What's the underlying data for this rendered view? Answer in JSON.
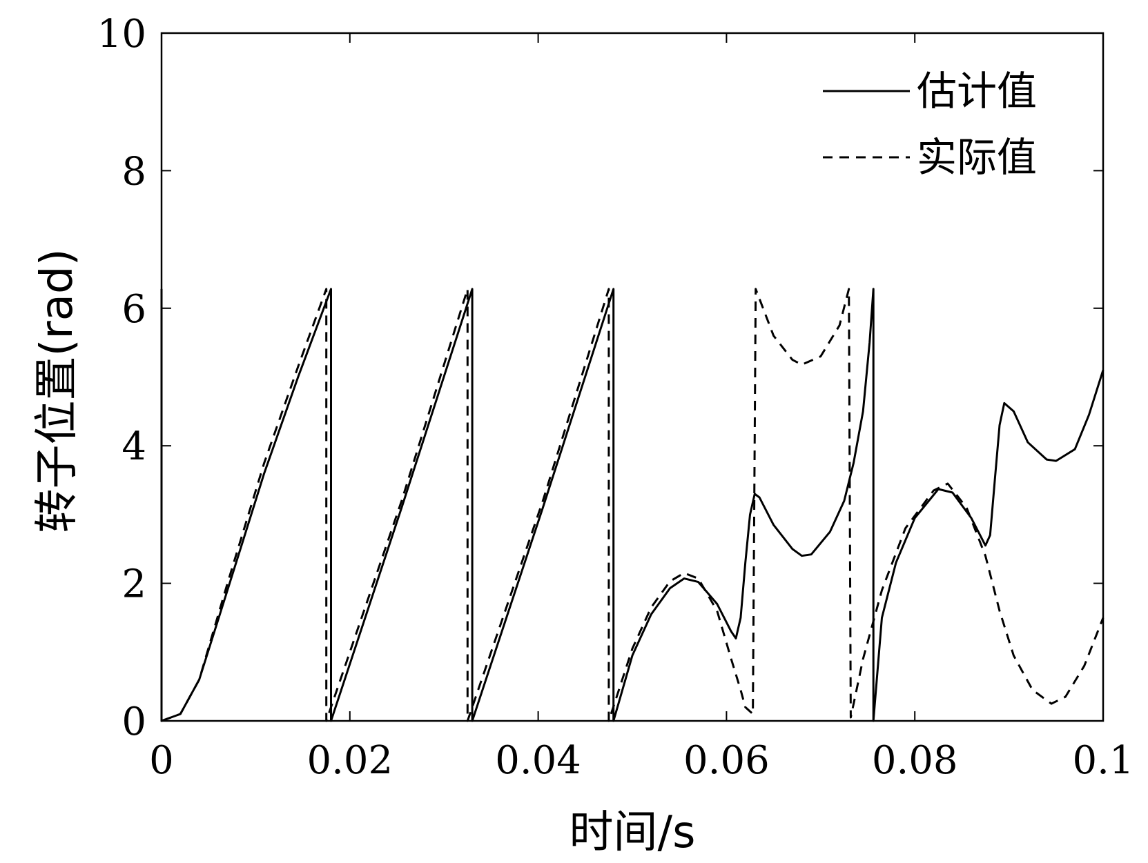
{
  "chart_data": {
    "type": "line",
    "xlabel": "时间/s",
    "ylabel": "转子位置(rad)",
    "xlim": [
      0,
      0.1
    ],
    "ylim": [
      0,
      10
    ],
    "x_ticks": [
      0,
      0.02,
      0.04,
      0.06,
      0.08,
      0.1
    ],
    "x_tick_labels": [
      "0",
      "0.02",
      "0.04",
      "0.06",
      "0.08",
      "0.1"
    ],
    "y_ticks": [
      0,
      2,
      4,
      6,
      8,
      10
    ],
    "y_tick_labels": [
      "0",
      "2",
      "4",
      "6",
      "8",
      "10"
    ],
    "grid": false,
    "legend_position": "top-right",
    "series": [
      {
        "name": "估计值",
        "style": "solid",
        "color": "#000000",
        "points": [
          [
            0,
            6.28
          ],
          [
            0,
            0
          ],
          [
            0.002,
            0.1
          ],
          [
            0.004,
            0.6
          ],
          [
            0.007,
            1.9
          ],
          [
            0.0109,
            3.6
          ],
          [
            0.0145,
            5.0
          ],
          [
            0.018,
            6.28
          ],
          [
            0.018,
            0
          ],
          [
            0.0255,
            3.1
          ],
          [
            0.033,
            6.28
          ],
          [
            0.033,
            0
          ],
          [
            0.0405,
            3.1
          ],
          [
            0.048,
            6.28
          ],
          [
            0.048,
            0
          ],
          [
            0.05,
            0.95
          ],
          [
            0.052,
            1.55
          ],
          [
            0.054,
            1.93
          ],
          [
            0.0555,
            2.07
          ],
          [
            0.057,
            2.02
          ],
          [
            0.059,
            1.7
          ],
          [
            0.0605,
            1.3
          ],
          [
            0.061,
            1.2
          ],
          [
            0.0615,
            1.5
          ],
          [
            0.062,
            2.3
          ],
          [
            0.0625,
            3.0
          ],
          [
            0.063,
            3.3
          ],
          [
            0.0635,
            3.25
          ],
          [
            0.065,
            2.85
          ],
          [
            0.067,
            2.5
          ],
          [
            0.068,
            2.4
          ],
          [
            0.069,
            2.42
          ],
          [
            0.071,
            2.75
          ],
          [
            0.0725,
            3.2
          ],
          [
            0.0735,
            3.75
          ],
          [
            0.0745,
            4.5
          ],
          [
            0.0752,
            5.5
          ],
          [
            0.0756,
            6.28
          ],
          [
            0.0756,
            0
          ],
          [
            0.0765,
            1.5
          ],
          [
            0.078,
            2.3
          ],
          [
            0.08,
            2.95
          ],
          [
            0.0825,
            3.37
          ],
          [
            0.084,
            3.32
          ],
          [
            0.086,
            2.95
          ],
          [
            0.0875,
            2.55
          ],
          [
            0.088,
            2.7
          ],
          [
            0.0885,
            3.5
          ],
          [
            0.089,
            4.3
          ],
          [
            0.0895,
            4.62
          ],
          [
            0.0905,
            4.5
          ],
          [
            0.092,
            4.05
          ],
          [
            0.094,
            3.8
          ],
          [
            0.095,
            3.78
          ],
          [
            0.097,
            3.95
          ],
          [
            0.0985,
            4.45
          ],
          [
            0.1,
            5.1
          ]
        ]
      },
      {
        "name": "实际值",
        "style": "dashed",
        "color": "#000000",
        "points": [
          [
            0,
            0
          ],
          [
            0.002,
            0.1
          ],
          [
            0.004,
            0.6
          ],
          [
            0.007,
            2.0
          ],
          [
            0.0109,
            3.75
          ],
          [
            0.0145,
            5.15
          ],
          [
            0.0175,
            6.28
          ],
          [
            0.0175,
            0
          ],
          [
            0.0255,
            3.2
          ],
          [
            0.0325,
            6.28
          ],
          [
            0.0325,
            0
          ],
          [
            0.0405,
            3.2
          ],
          [
            0.0475,
            6.28
          ],
          [
            0.0475,
            0
          ],
          [
            0.05,
            1.05
          ],
          [
            0.052,
            1.65
          ],
          [
            0.054,
            2.03
          ],
          [
            0.0555,
            2.15
          ],
          [
            0.057,
            2.07
          ],
          [
            0.059,
            1.6
          ],
          [
            0.0605,
            0.9
          ],
          [
            0.0615,
            0.45
          ],
          [
            0.062,
            0.2
          ],
          [
            0.0628,
            0.1
          ],
          [
            0.0631,
            6.28
          ],
          [
            0.065,
            5.6
          ],
          [
            0.067,
            5.25
          ],
          [
            0.068,
            5.18
          ],
          [
            0.07,
            5.3
          ],
          [
            0.072,
            5.75
          ],
          [
            0.073,
            6.28
          ],
          [
            0.0732,
            0.05
          ],
          [
            0.0745,
            0.9
          ],
          [
            0.0765,
            1.9
          ],
          [
            0.079,
            2.8
          ],
          [
            0.082,
            3.35
          ],
          [
            0.0835,
            3.45
          ],
          [
            0.0855,
            3.1
          ],
          [
            0.0875,
            2.4
          ],
          [
            0.089,
            1.6
          ],
          [
            0.0905,
            0.95
          ],
          [
            0.0925,
            0.45
          ],
          [
            0.0945,
            0.25
          ],
          [
            0.096,
            0.35
          ],
          [
            0.098,
            0.8
          ],
          [
            0.1,
            1.5
          ]
        ]
      }
    ]
  }
}
